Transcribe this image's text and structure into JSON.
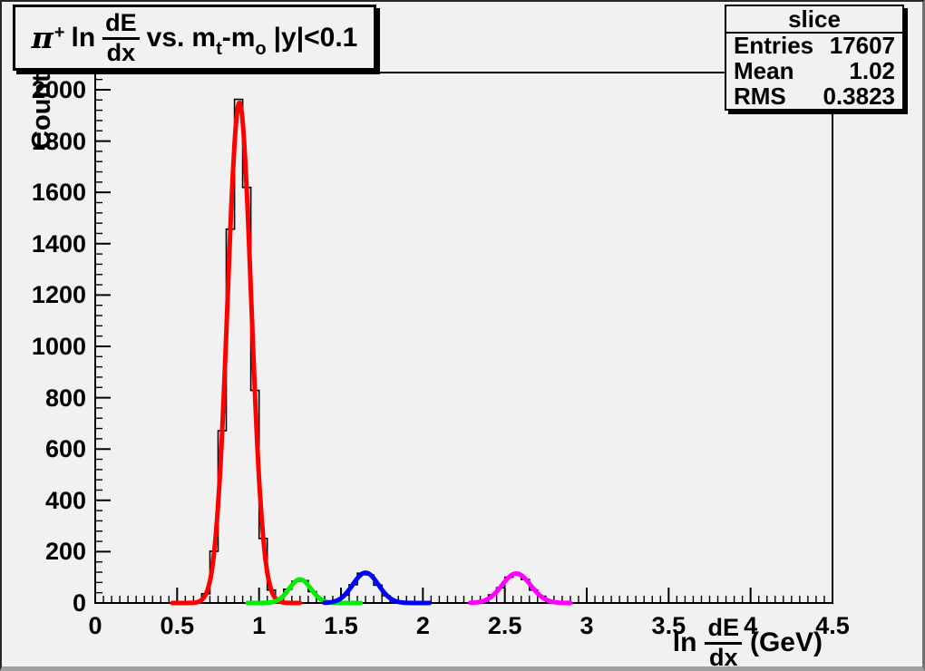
{
  "canvas": {
    "background": "#f2f1f2",
    "frame_border_color": "#000000"
  },
  "title_box": {
    "pi": "π",
    "pi_sup": "+",
    "ln": "ln",
    "frac_num": "dE",
    "frac_den": "dx",
    "vs": "vs.",
    "m1": "m",
    "sub_t": "t",
    "m2": "-m",
    "sub_o": "o",
    "cut": "|y|<0.1"
  },
  "stats_box": {
    "title": "slice",
    "rows": [
      {
        "label": "Entries",
        "value": "17607"
      },
      {
        "label": "Mean",
        "value": "1.02"
      },
      {
        "label": "RMS",
        "value": "0.3823"
      }
    ]
  },
  "y_axis": {
    "title": "Counts",
    "tick_labels": [
      "0",
      "200",
      "400",
      "600",
      "800",
      "1000",
      "1200",
      "1400",
      "1600",
      "1800",
      "2000"
    ],
    "major_step": 200,
    "minor_step": 40
  },
  "x_axis": {
    "title_ln": "ln",
    "title_frac_num": "dE",
    "title_frac_den": "dx",
    "title_unit": "(GeV)",
    "tick_labels": [
      "0",
      "0.5",
      "1",
      "1.5",
      "2",
      "2.5",
      "3",
      "3.5",
      "4",
      "4.5"
    ],
    "major_step": 0.5,
    "minor_step": 0.05
  },
  "chart_data": {
    "type": "histogram",
    "title": "pi+ ln dE/dx vs. mt-mo |y|<0.1",
    "xlabel": "ln dE/dx (GeV)",
    "ylabel": "Counts",
    "xlim": [
      0,
      4.5
    ],
    "ylim": [
      0,
      2067
    ],
    "grid": false,
    "bin_width": 0.05,
    "histogram_color": "#000000",
    "stats": {
      "name": "slice",
      "entries": 17607,
      "mean": 1.02,
      "rms": 0.3823
    },
    "fits": [
      {
        "name": "pion-peak",
        "color": "#ff0000",
        "center": 0.88,
        "sigma": 0.072,
        "amplitude": 1950,
        "draw_range": [
          0.47,
          1.25
        ]
      },
      {
        "name": "second-peak",
        "color": "#00ee00",
        "center": 1.25,
        "sigma": 0.066,
        "amplitude": 92,
        "draw_range": [
          0.93,
          1.62
        ]
      },
      {
        "name": "third-peak",
        "color": "#0000ff",
        "center": 1.65,
        "sigma": 0.078,
        "amplitude": 118,
        "draw_range": [
          1.4,
          2.04
        ]
      },
      {
        "name": "fourth-peak",
        "color": "#ff00ff",
        "center": 2.57,
        "sigma": 0.087,
        "amplitude": 115,
        "draw_range": [
          2.29,
          2.9
        ]
      }
    ]
  }
}
